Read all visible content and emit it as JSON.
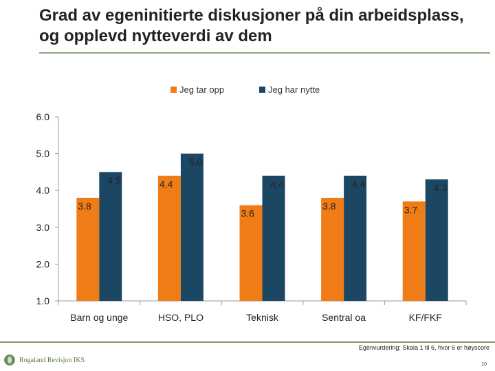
{
  "title": "Grad av egeninitierte diskusjoner på din arbeidsplass, og opplevd nytteverdi av dem",
  "footer": {
    "note": "Egenvurdering: Skala 1 til 6, hvor 6 er høyscore",
    "page_number": "10",
    "logo_text": "Rogaland Revisjon IKS"
  },
  "colors": {
    "orange": "#f07c18",
    "navy": "#1c4764",
    "axis": "#999999"
  },
  "chart_data": {
    "type": "bar",
    "categories": [
      "Barn og unge",
      "HSO, PLO",
      "Teknisk",
      "Sentral oa",
      "KF/FKF"
    ],
    "series": [
      {
        "name": "Jeg tar opp",
        "values": [
          3.8,
          4.4,
          3.6,
          3.8,
          3.7
        ],
        "labels": [
          "3.8",
          "4.4",
          "3.6",
          "3.8",
          "3.7"
        ],
        "color": "#f07c18"
      },
      {
        "name": "Jeg har nytte",
        "values": [
          4.5,
          5.0,
          4.4,
          4.4,
          4.3
        ],
        "labels": [
          "4.5",
          "5.0",
          "4.4",
          "4.4",
          "4.3"
        ],
        "color": "#1c4764"
      }
    ],
    "ylim": [
      1.0,
      6.0
    ],
    "yticks": [
      "1.0",
      "2.0",
      "3.0",
      "4.0",
      "5.0",
      "6.0"
    ],
    "grid": false,
    "legend": "top-center",
    "xlabel": "",
    "ylabel": ""
  }
}
